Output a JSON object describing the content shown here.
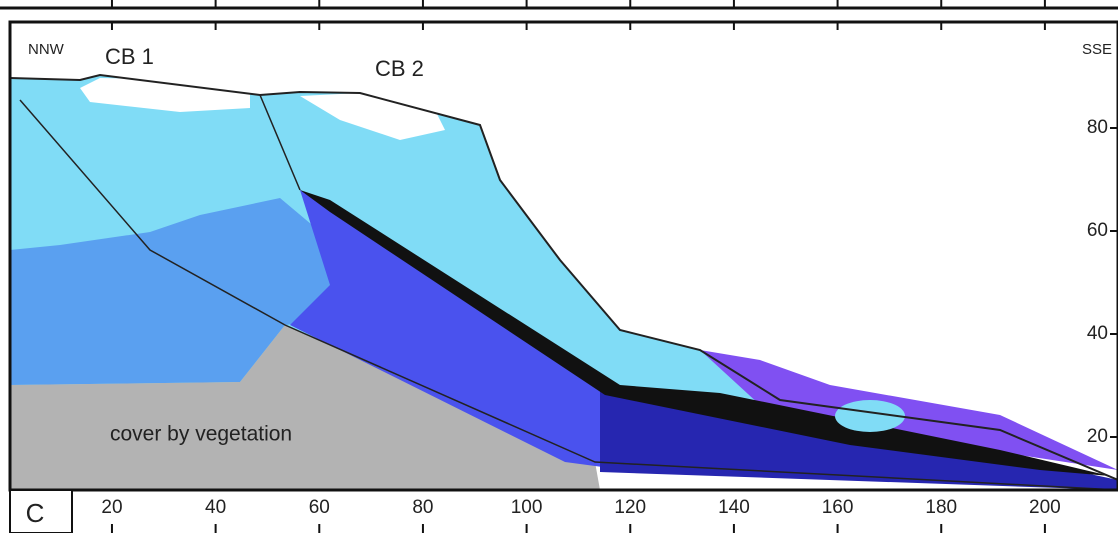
{
  "labels": {
    "left_direction": "NNW",
    "right_direction": "SSE",
    "body_1": "CB 1",
    "body_2": "CB 2",
    "vegetation": "cover by vegetation",
    "panel": "C"
  },
  "x_axis": {
    "ticks": [
      20,
      40,
      60,
      80,
      100,
      120,
      140,
      160,
      180,
      200
    ]
  },
  "y_axis": {
    "ticks": [
      80,
      60,
      40,
      20
    ]
  }
}
